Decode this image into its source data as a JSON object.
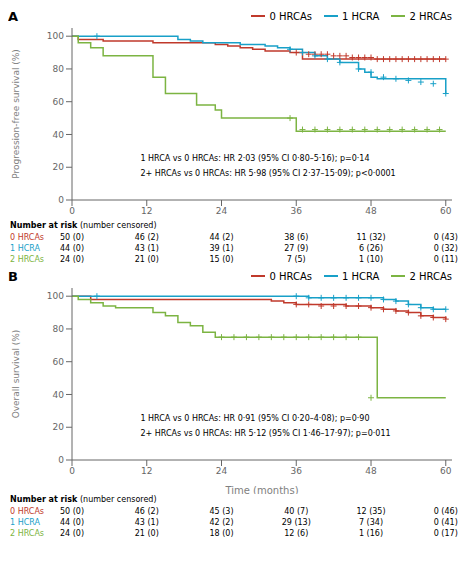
{
  "chart_data": [
    {
      "type": "line",
      "title": "A",
      "ylabel": "Progression-free survival (%)",
      "line_style": "step",
      "marker": "plus",
      "legend": "top",
      "xlim": [
        0,
        61
      ],
      "xticks": [
        0,
        12,
        24,
        36,
        48,
        60
      ],
      "ylim": [
        0,
        105
      ],
      "yticks": [
        0,
        20,
        40,
        60,
        80,
        100
      ],
      "annotations": [
        "1 HRCA vs 0 HRCAs: HR 2·03 (95% CI 0·80–5·16); p=0·14",
        "2+ HRCAs vs 0 HRCAs: HR 5·98 (95% CI 2·37–15·09); p<0·0001"
      ],
      "series": [
        {
          "name": "0 HRCAs",
          "color": "#c0392b",
          "x": [
            0,
            1,
            3,
            5,
            8,
            11,
            13,
            15,
            17,
            20,
            23,
            25,
            27,
            29,
            31,
            33,
            35,
            37,
            60
          ],
          "values": [
            100,
            98,
            98,
            97,
            97,
            97,
            96,
            96,
            96,
            96,
            95,
            94,
            93,
            92,
            91,
            91,
            90,
            86,
            86
          ],
          "censor_x": [
            36,
            37,
            38,
            39,
            40,
            41,
            42,
            43,
            44,
            45,
            46,
            47,
            48,
            49,
            50,
            51,
            52,
            53,
            54,
            55,
            56,
            57,
            58,
            59,
            60
          ],
          "censor_values": [
            90,
            90,
            89,
            89,
            89,
            89,
            88,
            88,
            88,
            87,
            87,
            87,
            87,
            86,
            86,
            86,
            86,
            86,
            86,
            86,
            86,
            86,
            86,
            86,
            86
          ]
        },
        {
          "name": "1 HCRA",
          "color": "#18a0c8",
          "x": [
            0,
            4,
            12,
            17,
            19,
            21,
            23,
            27,
            29,
            31,
            33,
            35,
            37,
            39,
            41,
            43,
            46,
            47,
            48,
            49,
            60
          ],
          "values": [
            100,
            100,
            100,
            98,
            97,
            96,
            96,
            95,
            95,
            94,
            93,
            92,
            90,
            88,
            86,
            84,
            80,
            78,
            75,
            74,
            65
          ],
          "censor_x": [
            4,
            35,
            37,
            39,
            41,
            43,
            46,
            48,
            50,
            52,
            54,
            56,
            58,
            60
          ],
          "censor_values": [
            100,
            92,
            90,
            88,
            86,
            84,
            80,
            78,
            75,
            74,
            73,
            72,
            71,
            65
          ]
        },
        {
          "name": "2 HRCAs",
          "color": "#7cb442",
          "x": [
            0,
            1,
            3,
            5,
            12,
            13,
            15,
            20,
            23,
            24,
            26,
            28,
            35,
            36,
            60
          ],
          "values": [
            100,
            96,
            93,
            88,
            88,
            75,
            65,
            58,
            55,
            50,
            50,
            50,
            50,
            42,
            42
          ],
          "censor_x": [
            35,
            37,
            39,
            41,
            43,
            45,
            47,
            49,
            51,
            53,
            55,
            57,
            59
          ],
          "censor_values": [
            50,
            43,
            43,
            43,
            43,
            43,
            43,
            43,
            43,
            43,
            43,
            43,
            43
          ]
        }
      ],
      "at_risk": {
        "title": "Number at risk",
        "subtitle": "(number censored)",
        "rows": [
          {
            "name": "0 HRCAs",
            "color": "#c0392b",
            "values": [
              "50 (0)",
              "46 (2)",
              "44 (2)",
              "38 (6)",
              "11 (32)",
              "0 (43)"
            ]
          },
          {
            "name": "1 HCRA",
            "color": "#18a0c8",
            "values": [
              "44 (0)",
              "43 (1)",
              "39 (1)",
              "27 (9)",
              "6 (26)",
              "0 (32)"
            ]
          },
          {
            "name": "2 HRCAs",
            "color": "#7cb442",
            "values": [
              "24 (0)",
              "21 (0)",
              "15 (0)",
              "7 (5)",
              "1 (10)",
              "0 (11)"
            ]
          }
        ]
      }
    },
    {
      "type": "line",
      "title": "B",
      "ylabel": "Overall survival (%)",
      "xlabel": "Time (months)",
      "line_style": "step",
      "marker": "plus",
      "legend": "top",
      "xlim": [
        0,
        61
      ],
      "xticks": [
        0,
        12,
        24,
        36,
        48,
        60
      ],
      "ylim": [
        0,
        105
      ],
      "yticks": [
        0,
        20,
        40,
        60,
        80,
        100
      ],
      "annotations": [
        "1 HRCA vs 0 HRCAs: HR 0·91 (95% CI 0·20–4·08); p=0·90",
        "2+ HRCAs vs 0 HRCAs: HR 5·12 (95% CI 1·46–17·97); p=0·011"
      ],
      "series": [
        {
          "name": "0 HRCAs",
          "color": "#c0392b",
          "x": [
            0,
            3,
            12,
            32,
            34,
            36,
            44,
            46,
            48,
            50,
            52,
            54,
            56,
            58,
            60
          ],
          "values": [
            100,
            98,
            98,
            97,
            96,
            95,
            94,
            94,
            93,
            92,
            91,
            90,
            88,
            87,
            86
          ],
          "censor_x": [
            36,
            38,
            40,
            42,
            44,
            46,
            48,
            50,
            52,
            54,
            56,
            58,
            60
          ],
          "censor_values": [
            95,
            95,
            94,
            94,
            94,
            94,
            93,
            92,
            91,
            90,
            88,
            87,
            86
          ]
        },
        {
          "name": "1 HCRA",
          "color": "#18a0c8",
          "x": [
            0,
            4,
            12,
            36,
            38,
            46,
            48,
            50,
            52,
            54,
            56,
            58,
            60
          ],
          "values": [
            100,
            100,
            100,
            100,
            99,
            99,
            99,
            98,
            97,
            95,
            93,
            92,
            92
          ],
          "censor_x": [
            4,
            36,
            38,
            40,
            42,
            44,
            46,
            48,
            50,
            52,
            54,
            56,
            58,
            60
          ],
          "censor_values": [
            100,
            100,
            99,
            99,
            99,
            99,
            99,
            99,
            98,
            97,
            95,
            93,
            92,
            92
          ]
        },
        {
          "name": "2 HRCAs",
          "color": "#7cb442",
          "x": [
            0,
            1,
            3,
            5,
            7,
            9,
            12,
            13,
            15,
            17,
            19,
            21,
            23,
            24,
            48,
            49,
            60
          ],
          "values": [
            100,
            98,
            96,
            94,
            93,
            93,
            93,
            90,
            88,
            84,
            82,
            78,
            75,
            75,
            75,
            38,
            38
          ],
          "censor_x": [
            24,
            26,
            28,
            30,
            32,
            34,
            36,
            38,
            40,
            42,
            44,
            46,
            48
          ],
          "censor_values": [
            75,
            75,
            75,
            75,
            75,
            75,
            75,
            75,
            75,
            75,
            75,
            75,
            38
          ]
        }
      ],
      "at_risk": {
        "title": "Number at risk",
        "subtitle": "(number censored)",
        "rows": [
          {
            "name": "0 HRCAs",
            "color": "#c0392b",
            "values": [
              "50 (0)",
              "46 (2)",
              "45 (3)",
              "40 (7)",
              "12 (35)",
              "0 (46)"
            ]
          },
          {
            "name": "1 HCRA",
            "color": "#18a0c8",
            "values": [
              "44 (0)",
              "43 (1)",
              "42 (2)",
              "29 (13)",
              "7 (34)",
              "0 (41)"
            ]
          },
          {
            "name": "2 HRCAs",
            "color": "#7cb442",
            "values": [
              "24 (0)",
              "21 (0)",
              "18 (0)",
              "12 (6)",
              "1 (16)",
              "0 (17)"
            ]
          }
        ]
      }
    }
  ]
}
